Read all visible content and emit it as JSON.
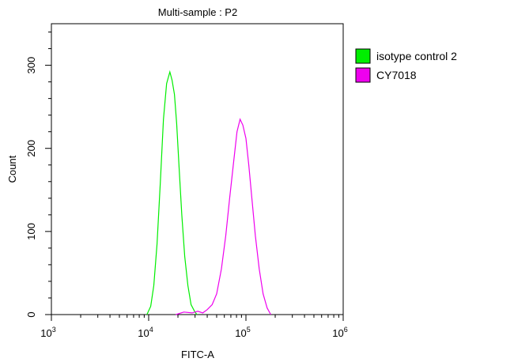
{
  "chart_data": {
    "type": "line",
    "title": "Multi-sample : P2",
    "xlabel": "FITC-A",
    "ylabel": "Count",
    "x_scale": "log",
    "xlim": [
      1000,
      1000000
    ],
    "ylim": [
      0,
      350
    ],
    "x_ticks": [
      {
        "value": 1000,
        "base": "10",
        "exp": "3"
      },
      {
        "value": 10000,
        "base": "10",
        "exp": "4"
      },
      {
        "value": 100000,
        "base": "10",
        "exp": "5"
      },
      {
        "value": 1000000,
        "base": "10",
        "exp": "6"
      }
    ],
    "y_ticks": [
      {
        "value": 0,
        "label": "0"
      },
      {
        "value": 100,
        "label": "100"
      },
      {
        "value": 200,
        "label": "200"
      },
      {
        "value": 300,
        "label": "300"
      }
    ],
    "grid": false,
    "legend_position": "top-right-outside",
    "series": [
      {
        "name": "isotype control 2",
        "color": "#00ee00",
        "x": [
          9600,
          10500,
          11300,
          12200,
          13200,
          14200,
          15300,
          16500,
          17400,
          18400,
          19400,
          20600,
          21900,
          23500,
          25300,
          27300,
          29600,
          31300
        ],
        "y": [
          0,
          10,
          35,
          85,
          160,
          235,
          278,
          292,
          282,
          265,
          230,
          175,
          120,
          70,
          35,
          12,
          4,
          0
        ]
      },
      {
        "name": "CY7018",
        "color": "#ee00ee",
        "x": [
          19000,
          23000,
          28000,
          32000,
          36000,
          40000,
          45000,
          50000,
          56000,
          62000,
          68000,
          75000,
          81000,
          87000,
          93000,
          100000,
          107000,
          115000,
          125000,
          137000,
          150000,
          165000,
          180000
        ],
        "y": [
          0,
          3,
          2,
          4,
          2,
          6,
          12,
          25,
          55,
          95,
          140,
          185,
          220,
          235,
          228,
          212,
          180,
          140,
          95,
          55,
          25,
          8,
          0
        ]
      }
    ]
  }
}
